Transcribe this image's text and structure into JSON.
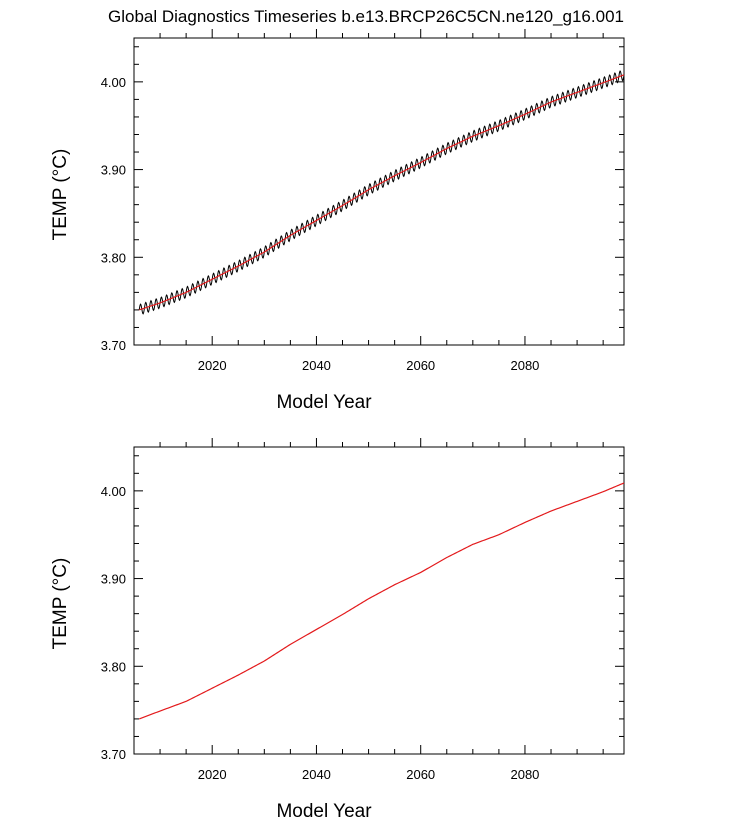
{
  "figure": {
    "title": "Global Diagnostics Timeseries b.e13.BRCP26C5CN.ne120_g16.001"
  },
  "chart_data": [
    {
      "type": "line",
      "xlabel": "Model Year",
      "ylabel": "TEMP (°C)",
      "xlim": [
        2005,
        2099
      ],
      "ylim": [
        3.7,
        4.05
      ],
      "xticks": [
        "2020",
        "2040",
        "2060",
        "2080"
      ],
      "yticks": [
        "3.70",
        "3.80",
        "3.90",
        "4.00"
      ],
      "grid": false,
      "series": [
        {
          "color": "#000000",
          "style": "monthly, seasonal oscillation amplitude ~0.006",
          "seasonal_amplitude": 0.006,
          "x": [
            2006,
            2010,
            2015,
            2020,
            2025,
            2030,
            2035,
            2040,
            2045,
            2050,
            2055,
            2060,
            2065,
            2070,
            2075,
            2080,
            2085,
            2090,
            2095,
            2099
          ],
          "y": [
            3.74,
            3.748,
            3.76,
            3.775,
            3.79,
            3.806,
            3.825,
            3.842,
            3.859,
            3.877,
            3.893,
            3.908,
            3.924,
            3.938,
            3.95,
            3.963,
            3.977,
            3.988,
            3.999,
            4.008
          ]
        },
        {
          "color": "#e31a1c",
          "style": "annual mean",
          "x": [
            2006,
            2010,
            2015,
            2020,
            2025,
            2030,
            2035,
            2040,
            2045,
            2050,
            2055,
            2060,
            2065,
            2070,
            2075,
            2080,
            2085,
            2090,
            2095,
            2099
          ],
          "y": [
            3.74,
            3.748,
            3.76,
            3.775,
            3.79,
            3.806,
            3.825,
            3.842,
            3.859,
            3.877,
            3.893,
            3.908,
            3.924,
            3.938,
            3.95,
            3.963,
            3.977,
            3.988,
            3.999,
            4.008
          ]
        }
      ]
    },
    {
      "type": "line",
      "xlabel": "Model Year",
      "ylabel": "TEMP (°C)",
      "xlim": [
        2005,
        2099
      ],
      "ylim": [
        3.7,
        4.05
      ],
      "xticks": [
        "2020",
        "2040",
        "2060",
        "2080"
      ],
      "yticks": [
        "3.70",
        "3.80",
        "3.90",
        "4.00"
      ],
      "grid": false,
      "series": [
        {
          "color": "#e31a1c",
          "style": "annual mean",
          "x": [
            2006,
            2010,
            2015,
            2020,
            2025,
            2030,
            2035,
            2040,
            2045,
            2050,
            2055,
            2060,
            2065,
            2070,
            2075,
            2080,
            2085,
            2090,
            2095,
            2099
          ],
          "y": [
            3.74,
            3.749,
            3.76,
            3.775,
            3.79,
            3.806,
            3.825,
            3.842,
            3.859,
            3.877,
            3.893,
            3.907,
            3.924,
            3.939,
            3.95,
            3.964,
            3.977,
            3.988,
            3.999,
            4.009
          ]
        }
      ]
    }
  ]
}
